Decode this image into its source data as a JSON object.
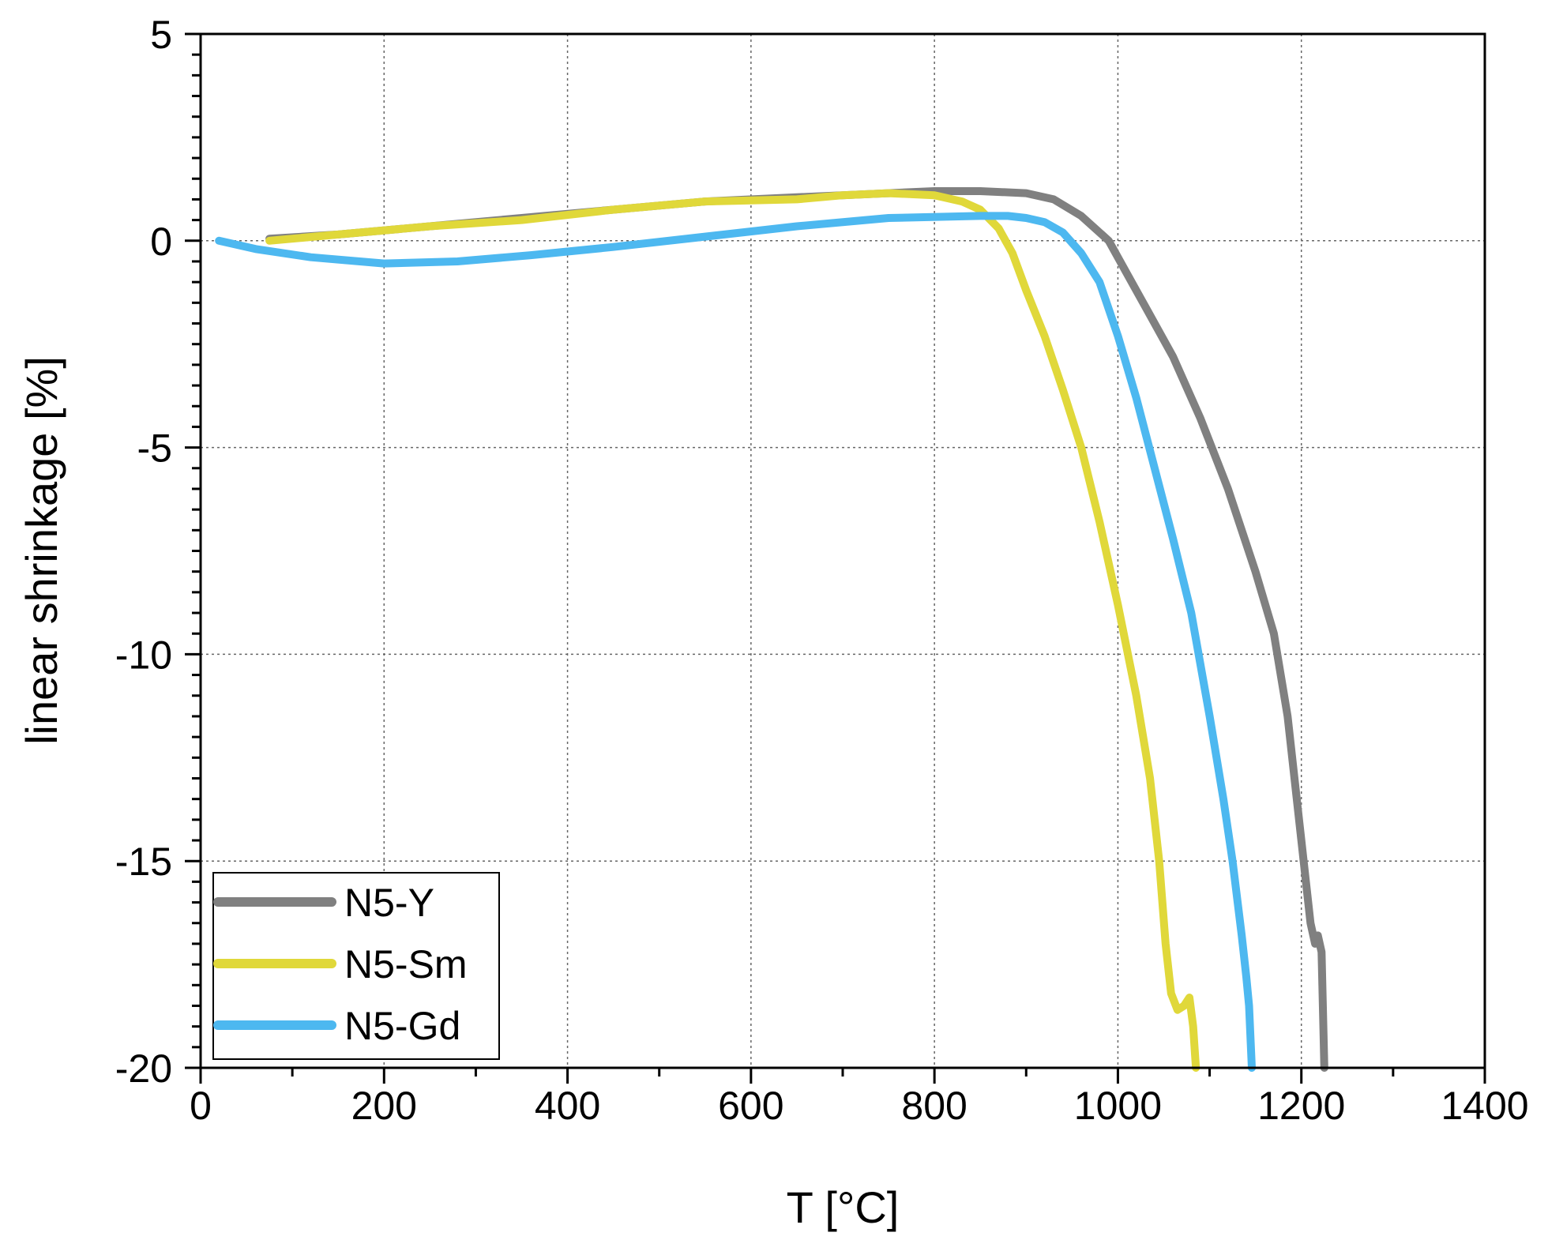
{
  "chart_data": {
    "type": "line",
    "title": "",
    "xlabel": "T [°C]",
    "ylabel": "linear shrinkage [%]",
    "xlim": [
      0,
      1400
    ],
    "ylim": [
      -20,
      5
    ],
    "x_ticks": [
      0,
      200,
      400,
      600,
      800,
      1000,
      1200,
      1400
    ],
    "x_tick_labels": [
      "0",
      "200",
      "400",
      "600",
      "800",
      "1000",
      "1200",
      "1400"
    ],
    "y_ticks": [
      5,
      0,
      -5,
      -10,
      -15,
      -20
    ],
    "y_tick_labels": [
      "5",
      "0",
      "-5",
      "-10",
      "-15",
      "-20"
    ],
    "grid": true,
    "legend_position": "bottom-left",
    "series": [
      {
        "name": "N5-Y",
        "color": "#808080",
        "points": [
          [
            75,
            0.05
          ],
          [
            150,
            0.15
          ],
          [
            250,
            0.35
          ],
          [
            350,
            0.55
          ],
          [
            450,
            0.75
          ],
          [
            550,
            0.95
          ],
          [
            650,
            1.05
          ],
          [
            750,
            1.15
          ],
          [
            800,
            1.2
          ],
          [
            850,
            1.2
          ],
          [
            900,
            1.15
          ],
          [
            930,
            1.0
          ],
          [
            960,
            0.6
          ],
          [
            990,
            0.0
          ],
          [
            1010,
            -0.8
          ],
          [
            1030,
            -1.6
          ],
          [
            1060,
            -2.8
          ],
          [
            1090,
            -4.3
          ],
          [
            1120,
            -6.0
          ],
          [
            1150,
            -8.0
          ],
          [
            1170,
            -9.5
          ],
          [
            1185,
            -11.5
          ],
          [
            1195,
            -13.5
          ],
          [
            1205,
            -15.5
          ],
          [
            1210,
            -16.5
          ],
          [
            1215,
            -17.0
          ],
          [
            1218,
            -16.8
          ],
          [
            1222,
            -17.2
          ],
          [
            1225,
            -20.0
          ]
        ]
      },
      {
        "name": "N5-Sm",
        "color": "#e0d83a",
        "points": [
          [
            75,
            0.0
          ],
          [
            150,
            0.15
          ],
          [
            250,
            0.35
          ],
          [
            350,
            0.5
          ],
          [
            450,
            0.75
          ],
          [
            550,
            0.95
          ],
          [
            650,
            1.0
          ],
          [
            700,
            1.1
          ],
          [
            750,
            1.15
          ],
          [
            800,
            1.1
          ],
          [
            830,
            0.95
          ],
          [
            850,
            0.75
          ],
          [
            870,
            0.3
          ],
          [
            885,
            -0.3
          ],
          [
            900,
            -1.2
          ],
          [
            920,
            -2.3
          ],
          [
            940,
            -3.6
          ],
          [
            960,
            -5.0
          ],
          [
            980,
            -6.8
          ],
          [
            1000,
            -8.8
          ],
          [
            1020,
            -11.0
          ],
          [
            1035,
            -13.0
          ],
          [
            1045,
            -15.0
          ],
          [
            1052,
            -17.0
          ],
          [
            1058,
            -18.2
          ],
          [
            1065,
            -18.6
          ],
          [
            1072,
            -18.5
          ],
          [
            1078,
            -18.3
          ],
          [
            1082,
            -19.0
          ],
          [
            1085,
            -20.0
          ]
        ]
      },
      {
        "name": "N5-Gd",
        "color": "#4db8f0",
        "points": [
          [
            20,
            0.0
          ],
          [
            60,
            -0.2
          ],
          [
            120,
            -0.4
          ],
          [
            200,
            -0.55
          ],
          [
            280,
            -0.5
          ],
          [
            360,
            -0.35
          ],
          [
            450,
            -0.15
          ],
          [
            550,
            0.1
          ],
          [
            650,
            0.35
          ],
          [
            750,
            0.55
          ],
          [
            850,
            0.6
          ],
          [
            880,
            0.6
          ],
          [
            900,
            0.55
          ],
          [
            920,
            0.45
          ],
          [
            940,
            0.2
          ],
          [
            960,
            -0.3
          ],
          [
            980,
            -1.0
          ],
          [
            1000,
            -2.3
          ],
          [
            1020,
            -3.8
          ],
          [
            1040,
            -5.5
          ],
          [
            1060,
            -7.2
          ],
          [
            1080,
            -9.0
          ],
          [
            1100,
            -11.5
          ],
          [
            1115,
            -13.5
          ],
          [
            1125,
            -15.0
          ],
          [
            1135,
            -16.8
          ],
          [
            1140,
            -17.8
          ],
          [
            1143,
            -18.5
          ],
          [
            1146,
            -20.0
          ]
        ]
      }
    ]
  }
}
